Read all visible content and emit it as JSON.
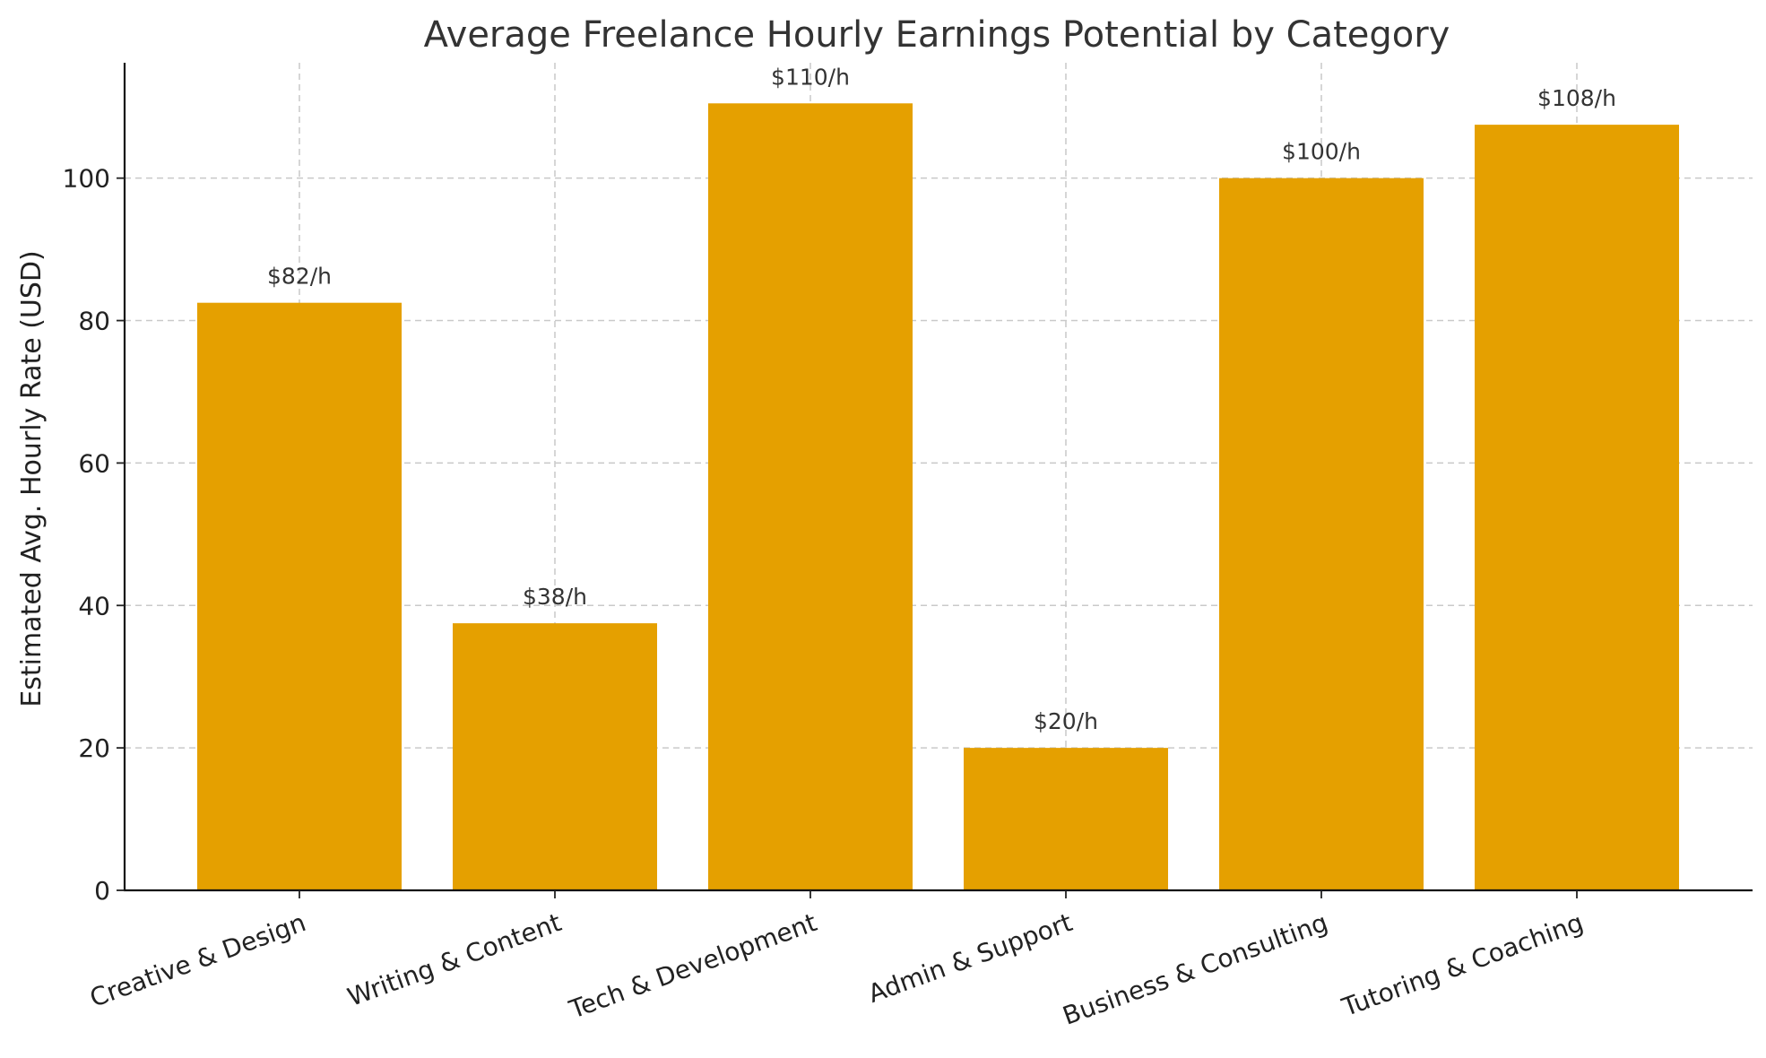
{
  "chart_data": {
    "type": "bar",
    "title": "Average Freelance Hourly Earnings Potential by Category",
    "xlabel": "",
    "ylabel": "Estimated Avg. Hourly Rate (USD)",
    "categories": [
      "Creative & Design",
      "Writing & Content",
      "Tech & Development",
      "Admin & Support",
      "Business & Consulting",
      "Tutoring & Coaching"
    ],
    "values": [
      82.5,
      37.5,
      110.5,
      20,
      100,
      107.5
    ],
    "data_labels": [
      "$82/h",
      "$38/h",
      "$110/h",
      "$20/h",
      "$100/h",
      "$108/h"
    ],
    "ylim": [
      0,
      116.2
    ],
    "yticks": [
      0,
      20,
      40,
      60,
      80,
      100
    ],
    "grid": true,
    "legend": "none",
    "colors": {
      "bar": "#e5a000",
      "grid": "#c9c9c9",
      "axis": "#111111",
      "text": "#333333"
    }
  }
}
